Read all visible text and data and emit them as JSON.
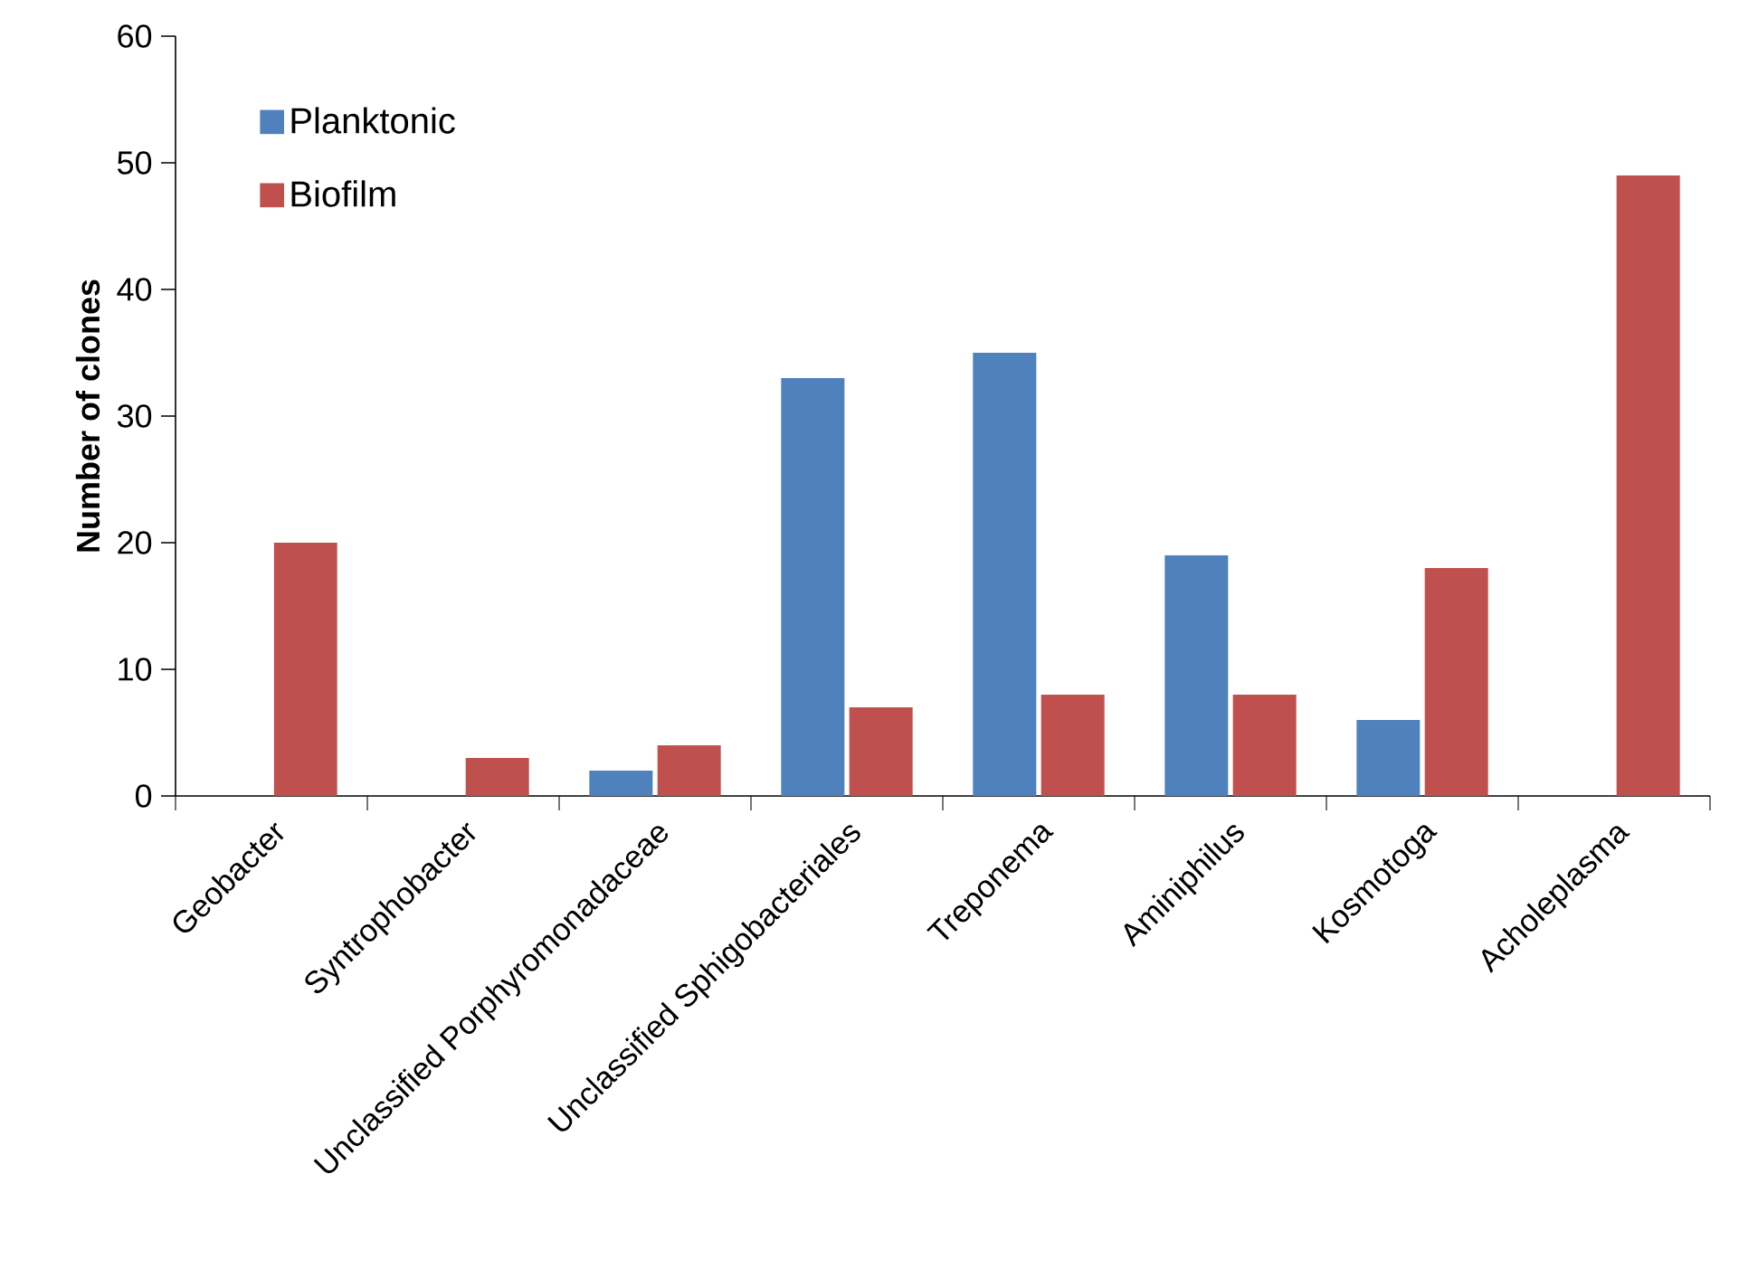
{
  "chart_data": {
    "type": "bar",
    "ylabel": "Number of clones",
    "categories": [
      "Geobacter",
      "Syntrophobacter",
      "Unclassified Porphyromonadaceae",
      "Unclassified Sphigobacteriales",
      "Treponema",
      "Aminiphilus",
      "Kosmotoga",
      "Acholeplasma"
    ],
    "series": [
      {
        "name": "Planktonic",
        "color": "#4f81bd",
        "values": [
          0,
          0,
          2,
          33,
          35,
          19,
          6,
          0
        ]
      },
      {
        "name": "Biofilm",
        "color": "#c0504d",
        "values": [
          20,
          3,
          4,
          7,
          8,
          8,
          18,
          49
        ]
      }
    ],
    "ylim": [
      0,
      60
    ],
    "yticks": [
      0,
      10,
      20,
      30,
      40,
      50,
      60
    ],
    "legend": "top left",
    "grid": false
  }
}
